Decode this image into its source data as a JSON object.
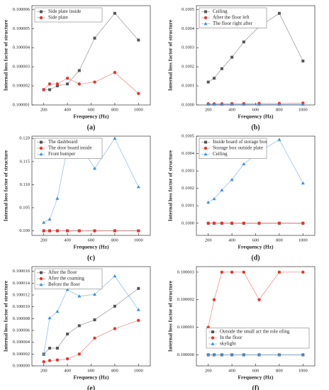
{
  "chart_data": [
    {
      "type": "line",
      "caption": "(a)",
      "x_label": "Frequency (Hz)",
      "y_label": "Internal loss factor of structure",
      "x": [
        200,
        250,
        315,
        400,
        500,
        630,
        800,
        1000
      ],
      "xlim": [
        100,
        1100
      ],
      "xticks": [
        200,
        400,
        600,
        800,
        1000
      ],
      "ylim": [
        0.100001,
        0.1000062
      ],
      "yticks": [
        0.100001,
        0.100002,
        0.100003,
        0.100004,
        0.100005,
        0.100006
      ],
      "legend": "upper left",
      "series": [
        {
          "name": "Side plate inside",
          "color": "#555555",
          "marker": "square",
          "values": [
            0.1000018,
            0.1000018,
            0.100002,
            0.1000021,
            0.1000028,
            0.1000045,
            0.1000058,
            0.1000044
          ]
        },
        {
          "name": "Side plate",
          "color": "#e8342f",
          "marker": "circle",
          "values": [
            0.1000018,
            0.1000021,
            0.1000021,
            0.1000024,
            0.1000021,
            0.1000022,
            0.1000027,
            0.1000016
          ]
        }
      ]
    },
    {
      "type": "line",
      "caption": "(b)",
      "x_label": "Frequency (Hz)",
      "y_label": "Internal loss factor of structure",
      "x": [
        200,
        250,
        315,
        400,
        500,
        630,
        800,
        1000
      ],
      "xlim": [
        100,
        1100
      ],
      "xticks": [
        200,
        400,
        600,
        800,
        1000
      ],
      "ylim": [
        0.1,
        0.10052
      ],
      "yticks": [
        {
          "value": 0.1,
          "label": "0.1000"
        },
        0.1001,
        0.1002,
        0.1003,
        0.1004,
        0.1005
      ],
      "legend": "upper left",
      "series": [
        {
          "name": "Ceiling",
          "color": "#555555",
          "marker": "square",
          "values": [
            0.10012,
            0.10014,
            0.10019,
            0.10025,
            0.10033,
            0.10041,
            0.10048,
            0.10023
          ]
        },
        {
          "name": "After the floor left",
          "color": "#e8342f",
          "marker": "circle",
          "values": [
            0.100006,
            0.100006,
            0.100006,
            0.100007,
            0.100007,
            0.100008,
            0.100008,
            0.10001
          ]
        },
        {
          "name": "The floor right after",
          "color": "#3f8fde",
          "marker": "triangle",
          "values": [
            0.100003,
            0.100003,
            0.100003,
            0.100003,
            0.100003,
            0.100003,
            0.100003,
            0.100003
          ]
        }
      ]
    },
    {
      "type": "line",
      "caption": "(c)",
      "x_label": "Frequency (Hz)",
      "y_label": "Internal loss factor of structure",
      "x": [
        200,
        250,
        315,
        400,
        500,
        630,
        800,
        1000
      ],
      "xlim": [
        100,
        1100
      ],
      "xticks": [
        200,
        400,
        600,
        800,
        1000
      ],
      "ylim": [
        0.099,
        0.1205
      ],
      "yticks": [
        {
          "value": 0.1,
          "label": "0.100"
        },
        0.105,
        {
          "value": 0.11,
          "label": "0.110"
        },
        0.115,
        {
          "value": 0.12,
          "label": "0.120"
        }
      ],
      "legend": "upper left",
      "series": [
        {
          "name": "The dashboard",
          "color": "#555555",
          "marker": "square",
          "values": [
            0.1,
            0.1,
            0.1,
            0.1,
            0.1,
            0.1,
            0.1,
            0.1
          ]
        },
        {
          "name": "The door board inside",
          "color": "#e8342f",
          "marker": "circle",
          "values": [
            0.1,
            0.1,
            0.1,
            0.1,
            0.1,
            0.1,
            0.1,
            0.1
          ]
        },
        {
          "name": "Front bumper",
          "color": "#3f8fde",
          "marker": "triangle",
          "values": [
            0.1018,
            0.1025,
            0.107,
            0.118,
            0.119,
            0.1135,
            0.12,
            0.1095
          ]
        }
      ]
    },
    {
      "type": "line",
      "caption": "(d)",
      "x_label": "Frequency (Hz)",
      "y_label": "Internal loss factor of structure",
      "x": [
        200,
        250,
        315,
        400,
        500,
        630,
        800,
        1000
      ],
      "xlim": [
        100,
        1100
      ],
      "xticks": [
        200,
        400,
        600,
        800,
        1000
      ],
      "ylim": [
        0.09993,
        0.1005
      ],
      "yticks": [
        {
          "value": 0.1,
          "label": "0.1000"
        },
        0.1001,
        0.1002,
        0.1003,
        0.1004,
        0.1005
      ],
      "legend": "upper left",
      "series": [
        {
          "name": "Inside board of storage box",
          "color": "#555555",
          "marker": "square",
          "values": [
            0.1,
            0.1,
            0.1,
            0.1,
            0.1,
            0.1,
            0.1,
            0.1
          ]
        },
        {
          "name": "Storage box outside plate",
          "color": "#e8342f",
          "marker": "circle",
          "values": [
            0.1,
            0.1,
            0.1,
            0.1,
            0.1,
            0.1,
            0.1,
            0.1
          ]
        },
        {
          "name": "Ceiling",
          "color": "#3f8fde",
          "marker": "triangle",
          "values": [
            0.10012,
            0.10014,
            0.10019,
            0.10025,
            0.10034,
            0.10041,
            0.10048,
            0.10023
          ]
        }
      ]
    },
    {
      "type": "line",
      "caption": "(e)",
      "x_label": "Frequency (Hz)",
      "y_label": "Internal loss factor of structure",
      "x": [
        200,
        250,
        315,
        400,
        500,
        630,
        800,
        1000
      ],
      "xlim": [
        100,
        1100
      ],
      "xticks": [
        200,
        400,
        600,
        800,
        1000
      ],
      "ylim": [
        0.1,
        0.1000168
      ],
      "yticks": [
        {
          "value": 0.1,
          "label": "0.100000"
        },
        0.100002,
        0.100004,
        0.100006,
        0.100008,
        {
          "value": 0.10001,
          "label": "0.100010"
        },
        0.100012,
        0.100014,
        0.100016
      ],
      "legend": "upper left",
      "series": [
        {
          "name": "After the floor",
          "color": "#555555",
          "marker": "square",
          "values": [
            0.100002,
            0.100003,
            0.100003,
            0.1000054,
            0.1000068,
            0.1000078,
            0.1000101,
            0.1000131
          ]
        },
        {
          "name": "After the coaming",
          "color": "#e8342f",
          "marker": "circle",
          "values": [
            0.1000007,
            0.1000009,
            0.100001,
            0.1000012,
            0.100002,
            0.1000047,
            0.1000063,
            0.1000077
          ]
        },
        {
          "name": "Before the floor",
          "color": "#3f8fde",
          "marker": "triangle",
          "values": [
            0.1000019,
            0.1000081,
            0.1000092,
            0.1000129,
            0.1000118,
            0.1000121,
            0.1000152,
            0.1000095
          ]
        }
      ]
    },
    {
      "type": "line",
      "caption": "(f)",
      "x_label": "Frequency (Hz)",
      "y_label": "Internal loss factor of structure",
      "x": [
        200,
        250,
        315,
        400,
        500,
        630,
        800,
        1000
      ],
      "xlim": [
        100,
        1100
      ],
      "xticks": [
        200,
        400,
        600,
        800,
        1000
      ],
      "ylim": [
        0.0999996,
        0.1000032
      ],
      "yticks": [
        {
          "value": 0.1,
          "label": "0.100000"
        },
        0.100001,
        0.100002,
        0.100003
      ],
      "legend": "lower right",
      "series": [
        {
          "name": "Outside the small act the role ofing",
          "color": "#555555",
          "marker": "square",
          "values": [
            0.1,
            0.1,
            0.1,
            0.1,
            0.1,
            0.1,
            0.1,
            0.1
          ]
        },
        {
          "name": "In the floor",
          "color": "#e8342f",
          "marker": "circle",
          "values": [
            0.100001,
            0.100002,
            0.100003,
            0.100003,
            0.100003,
            0.100002,
            0.100003,
            0.100003
          ]
        },
        {
          "name": "skylight",
          "color": "#3f8fde",
          "marker": "triangle",
          "values": [
            0.1,
            0.1,
            0.1,
            0.1,
            0.1,
            0.1,
            0.1,
            0.1
          ]
        }
      ]
    }
  ]
}
